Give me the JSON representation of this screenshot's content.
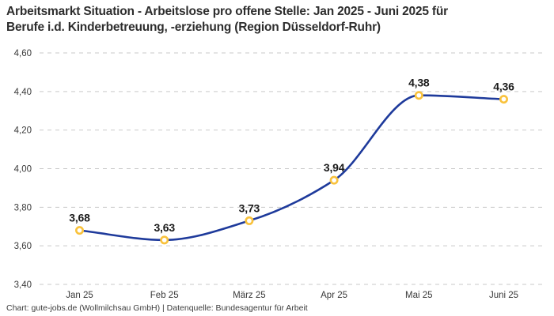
{
  "header": {
    "title_lines": [
      "Arbeitsmarkt Situation - Arbeitslose pro offene Stelle: Jan 2025 - Juni 2025 für",
      "Berufe i.d. Kinderbetreuung, -erziehung (Region Düsseldorf-Ruhr)"
    ]
  },
  "footer": {
    "credit": "Chart: gute-jobs.de (Wollmilchsau GmbH) | Datenquelle: Bundesagentur für Arbeit"
  },
  "chart_data": {
    "type": "line",
    "title": "Arbeitsmarkt Situation - Arbeitslose pro offene Stelle: Jan 2025 - Juni 2025 für Berufe i.d. Kinderbetreuung, -erziehung (Region Düsseldorf-Ruhr)",
    "categories": [
      "Jan 25",
      "Feb 25",
      "März 25",
      "Apr 25",
      "Mai 25",
      "Juni 25"
    ],
    "values": [
      3.68,
      3.63,
      3.73,
      3.94,
      4.38,
      4.36
    ],
    "point_labels": [
      "3,68",
      "3,63",
      "3,73",
      "3,94",
      "4,38",
      "4,36"
    ],
    "ylim": [
      3.4,
      4.6
    ],
    "ytick_step": 0.2,
    "ytick_labels": [
      "4,60",
      "4,40",
      "4,20",
      "4,00",
      "3,80",
      "3,60",
      "3,40"
    ],
    "ytick_values": [
      4.6,
      4.4,
      4.2,
      4.0,
      3.8,
      3.6,
      3.4
    ],
    "xlabel": "",
    "ylabel": "",
    "grid": "horizontal-dashed",
    "legend": "none",
    "colors": {
      "line": "#1e3a9b",
      "marker_ring": "#f9c23c",
      "marker_fill": "#ffffff",
      "grid": "#c9c9c9",
      "axis_text": "#3a3a3a",
      "point_label_text": "#1a1a1a",
      "title_text": "#2d2d2d"
    }
  }
}
